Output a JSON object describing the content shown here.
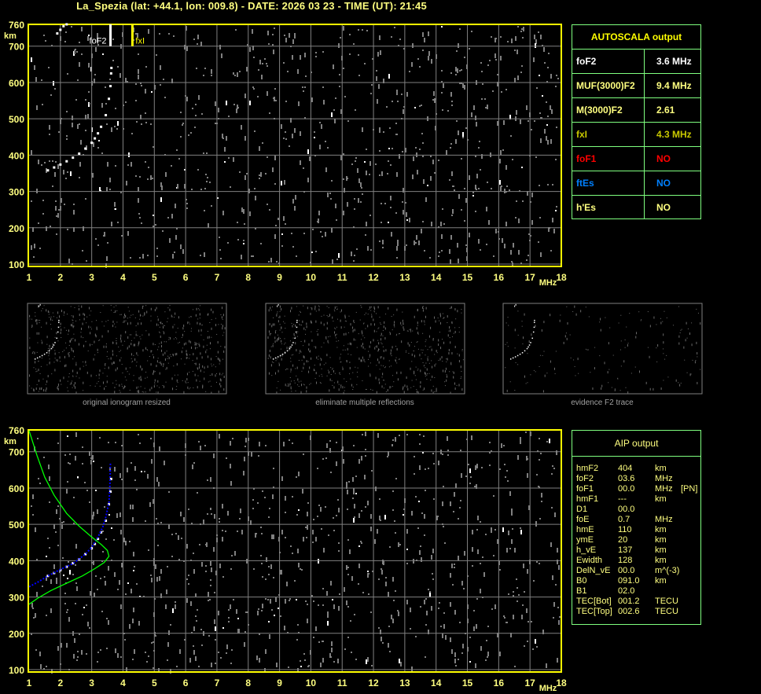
{
  "header": {
    "title": "La_Spezia (lat: +44.1, lon: 009.8) - DATE: 2026 03 23 - TIME (UT): 21:45"
  },
  "chart_data": [
    {
      "type": "scatter",
      "title": "",
      "xlabel": "MHz",
      "ylabel": "km",
      "xlim": [
        1,
        18
      ],
      "ylim": [
        100,
        760
      ],
      "x_ticks": [
        "1",
        "2",
        "3",
        "4",
        "5",
        "6",
        "7",
        "8",
        "9",
        "10",
        "11",
        "12",
        "13",
        "14",
        "15",
        "16",
        "17",
        "18"
      ],
      "y_ticks": [
        "760",
        "700",
        "600",
        "500",
        "400",
        "300",
        "200",
        "100"
      ],
      "grid": true,
      "markers": [
        {
          "label": "foF2",
          "x": 3.6,
          "color": "#ffffff"
        },
        {
          "label": "fxI",
          "x": 4.3,
          "color": "#ffff00"
        }
      ],
      "series": [
        {
          "points": [
            [
              1.6,
              358
            ],
            [
              1.8,
              366
            ],
            [
              2.0,
              374
            ],
            [
              2.2,
              383
            ],
            [
              2.4,
              393
            ],
            [
              2.6,
              404
            ],
            [
              2.8,
              418
            ],
            [
              3.0,
              434
            ],
            [
              3.1,
              446
            ],
            [
              3.2,
              460
            ],
            [
              3.3,
              478
            ],
            [
              3.45,
              510
            ],
            [
              3.55,
              555
            ],
            [
              3.6,
              590
            ],
            [
              3.62,
              625
            ],
            [
              3.63,
              640
            ]
          ],
          "color": "#ffffff"
        },
        {
          "points": [
            [
              1.9,
              735
            ],
            [
              2.0,
              745
            ],
            [
              2.1,
              755
            ],
            [
              2.2,
              760
            ]
          ],
          "color": "#ffffff"
        }
      ]
    },
    {
      "type": "table",
      "title": "original ionogram resized"
    },
    {
      "type": "table",
      "title": "eliminate multiple reflections"
    },
    {
      "type": "table",
      "title": "evidence F2 trace"
    },
    {
      "type": "line",
      "title": "",
      "xlabel": "MHz",
      "ylabel": "km",
      "xlim": [
        1,
        18
      ],
      "ylim": [
        100,
        760
      ],
      "x_ticks": [
        "1",
        "2",
        "3",
        "4",
        "5",
        "6",
        "7",
        "8",
        "9",
        "10",
        "11",
        "12",
        "13",
        "14",
        "15",
        "16",
        "17",
        "18"
      ],
      "y_ticks": [
        "760",
        "700",
        "600",
        "500",
        "400",
        "300",
        "200",
        "100"
      ],
      "grid": true,
      "series": [
        {
          "points": [
            [
              1.6,
              358
            ],
            [
              1.8,
              366
            ],
            [
              2.0,
              374
            ],
            [
              2.2,
              383
            ],
            [
              2.4,
              393
            ],
            [
              2.6,
              404
            ],
            [
              2.8,
              418
            ],
            [
              3.0,
              434
            ],
            [
              3.1,
              446
            ],
            [
              3.2,
              460
            ],
            [
              3.3,
              478
            ],
            [
              3.45,
              510
            ],
            [
              3.55,
              555
            ],
            [
              3.6,
              590
            ],
            [
              3.62,
              625
            ]
          ],
          "color": "#ffffff"
        },
        {
          "points": [
            [
              1.0,
              328
            ],
            [
              1.3,
              342
            ],
            [
              1.6,
              358
            ],
            [
              2.0,
              376
            ],
            [
              2.4,
              392
            ],
            [
              2.8,
              418
            ],
            [
              3.0,
              437
            ],
            [
              3.2,
              465
            ],
            [
              3.35,
              492
            ],
            [
              3.45,
              520
            ],
            [
              3.55,
              560
            ],
            [
              3.58,
              600
            ],
            [
              3.6,
              670
            ]
          ],
          "color": "#0000ff"
        },
        {
          "points": [
            [
              1.0,
              280
            ],
            [
              1.3,
              298
            ],
            [
              1.7,
              318
            ],
            [
              2.2,
              338
            ],
            [
              2.7,
              358
            ],
            [
              3.1,
              378
            ],
            [
              3.4,
              395
            ],
            [
              3.55,
              412
            ],
            [
              3.5,
              428
            ],
            [
              3.3,
              445
            ],
            [
              3.0,
              465
            ],
            [
              2.6,
              495
            ],
            [
              2.2,
              530
            ],
            [
              1.8,
              580
            ],
            [
              1.5,
              630
            ],
            [
              1.25,
              690
            ],
            [
              1.0,
              758
            ]
          ],
          "color": "#00ff00"
        }
      ]
    }
  ],
  "autoscala": {
    "title": "AUTOSCALA output",
    "rows": [
      {
        "k": "foF2",
        "v": "3.6 MHz",
        "color": "#ffffff"
      },
      {
        "k": "MUF(3000)F2",
        "v": "9.4 MHz",
        "color": "#ffff80"
      },
      {
        "k": "M(3000)F2",
        "v": "2.61",
        "color": "#ffff80"
      },
      {
        "k": "fxI",
        "v": "4.3 MHz",
        "color": "#c8c800"
      },
      {
        "k": "foF1",
        "v": "NO",
        "color": "#ff0000"
      },
      {
        "k": "ftEs",
        "v": "NO",
        "color": "#0080ff"
      },
      {
        "k": "h'Es",
        "v": "NO",
        "color": "#ffff80"
      }
    ]
  },
  "aip": {
    "title": "AIP output",
    "rows": [
      [
        "hmF2",
        "404",
        "km",
        ""
      ],
      [
        "foF2",
        "03.6",
        "MHz",
        ""
      ],
      [
        "foF1",
        "00.0",
        "MHz",
        "[PN]"
      ],
      [
        "hmF1",
        "---",
        "km",
        ""
      ],
      [
        "D1",
        "00.0",
        "",
        ""
      ],
      [
        "foE",
        "0.7",
        "MHz",
        ""
      ],
      [
        "hmE",
        "110",
        "km",
        ""
      ],
      [
        "ymE",
        "20",
        "km",
        ""
      ],
      [
        "h_vE",
        "137",
        "km",
        ""
      ],
      [
        "Ewidth",
        "128",
        "km",
        ""
      ],
      [
        "DelN_vE",
        "00.0",
        "m^(-3)",
        ""
      ],
      [
        "B0",
        "091.0",
        "km",
        ""
      ],
      [
        "B1",
        "02.0",
        "",
        ""
      ],
      [
        "TEC[Bot]",
        "001.2",
        "TECU",
        ""
      ],
      [
        "TEC[Top]",
        "002.6",
        "TECU",
        ""
      ]
    ]
  }
}
